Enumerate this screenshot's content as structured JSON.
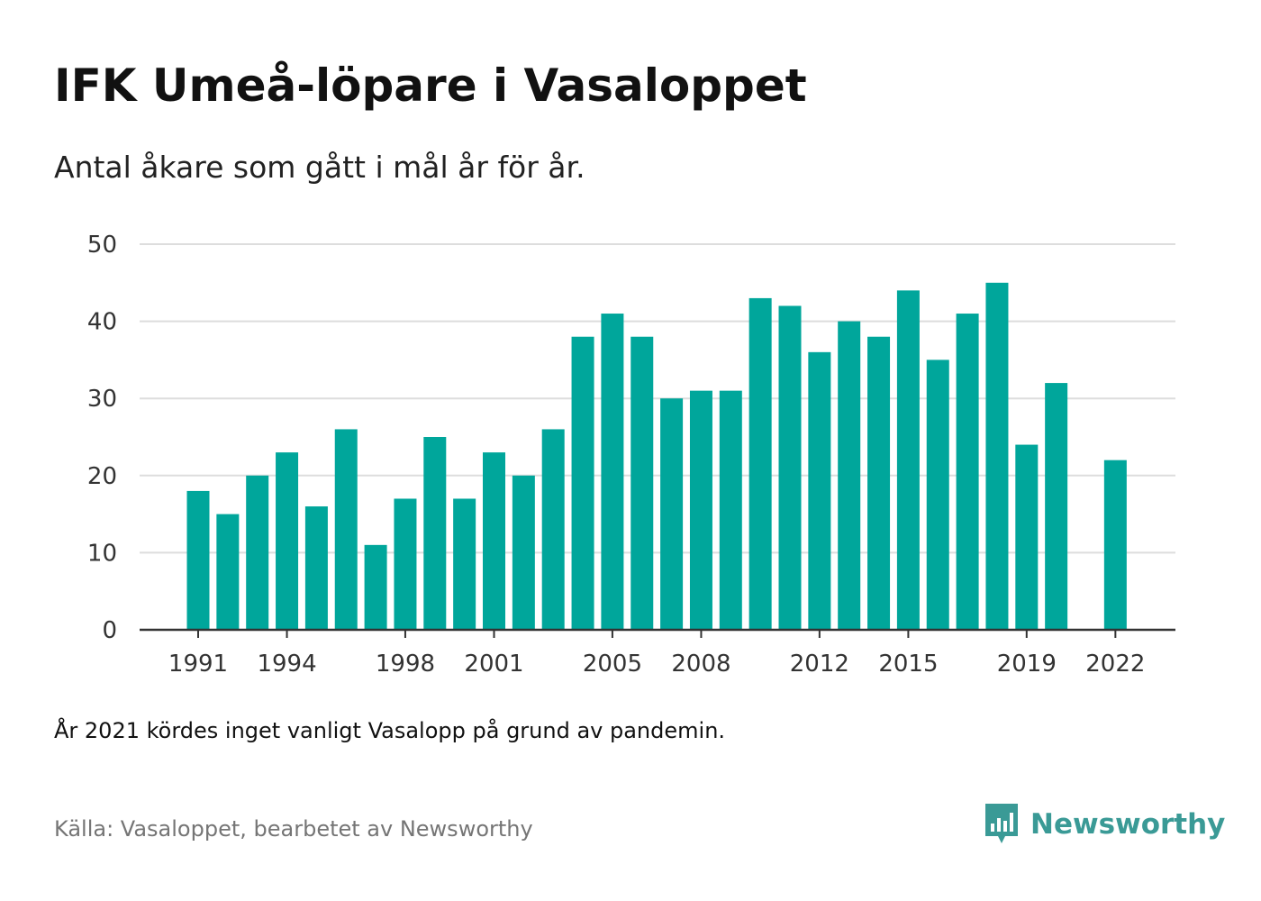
{
  "title": "IFK Umeå-löpare i Vasaloppet",
  "subtitle": "Antal åkare som gått i mål år för år.",
  "note": "År 2021 kördes inget vanligt Vasalopp på grund av pandemin.",
  "source": "Källa: Vasaloppet, bearbetet av Newsworthy",
  "brand": {
    "name": "Newsworthy",
    "icon": "newsworthy-logo-icon"
  },
  "colors": {
    "bar": "#00a69b",
    "grid": "#dddddd",
    "axis": "#333333",
    "brand": "#3a9a96"
  },
  "chart_data": {
    "type": "bar",
    "x": [
      1991,
      1992,
      1993,
      1994,
      1995,
      1996,
      1997,
      1998,
      1999,
      2000,
      2001,
      2002,
      2003,
      2004,
      2005,
      2006,
      2007,
      2008,
      2009,
      2010,
      2011,
      2012,
      2013,
      2014,
      2015,
      2016,
      2017,
      2018,
      2019,
      2020,
      2021,
      2022
    ],
    "values": [
      18,
      15,
      20,
      23,
      16,
      26,
      11,
      17,
      25,
      17,
      23,
      20,
      26,
      38,
      41,
      38,
      30,
      31,
      31,
      43,
      42,
      36,
      40,
      38,
      44,
      35,
      41,
      45,
      24,
      32,
      null,
      22
    ],
    "x_tick_labels": [
      "1991",
      "1994",
      "1998",
      "2001",
      "2005",
      "2008",
      "2012",
      "2015",
      "2019",
      "2022"
    ],
    "y_ticks": [
      0,
      10,
      20,
      30,
      40,
      50
    ],
    "ylim": [
      0,
      50
    ],
    "grid": true,
    "xlabel": "",
    "ylabel": ""
  }
}
